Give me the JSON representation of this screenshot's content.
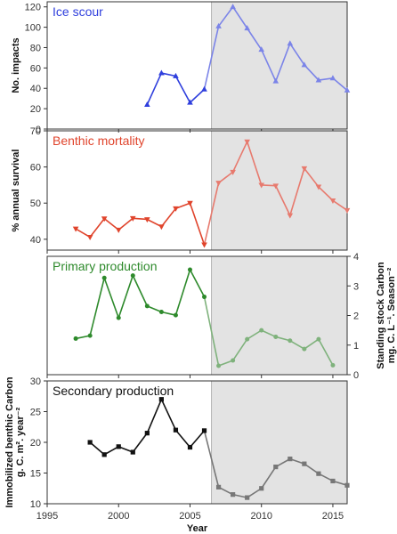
{
  "chart_data": [
    {
      "type": "line",
      "panel_label": "Ice scour",
      "ylabel": "No. impacts",
      "ylim": [
        0,
        125
      ],
      "yticks": [
        "0",
        "20",
        "40",
        "60",
        "80",
        "100",
        "120"
      ],
      "y_axis_side": "left",
      "shaded_from_x": 2006.5,
      "color": "#2f3fdd",
      "color_after": "#7b84e8",
      "marker": "triangle-up",
      "x": [
        2002,
        2003,
        2004,
        2005,
        2006,
        2007,
        2008,
        2009,
        2010,
        2011,
        2012,
        2013,
        2014,
        2015,
        2016
      ],
      "values": [
        24,
        55,
        52,
        26,
        39,
        101,
        120,
        99,
        78,
        47,
        84,
        63,
        48,
        50,
        38
      ]
    },
    {
      "type": "line",
      "panel_label": "Benthic mortality",
      "ylabel": "% annual survival",
      "ylim": [
        37,
        70
      ],
      "yticks": [
        "40",
        "50",
        "60",
        "70"
      ],
      "y_axis_side": "left",
      "shaded_from_x": 2006.5,
      "color": "#e0442c",
      "color_after": "#e77a6e",
      "marker": "triangle-down",
      "x": [
        1997,
        1998,
        1999,
        2000,
        2001,
        2002,
        2003,
        2004,
        2005,
        2006,
        2007,
        2008,
        2009,
        2010,
        2011,
        2012,
        2013,
        2014,
        2015,
        2016
      ],
      "values": [
        42.9,
        40.6,
        45.7,
        42.6,
        45.8,
        45.5,
        43.5,
        48.5,
        50,
        38.5,
        55.6,
        58.6,
        67,
        55,
        54.8,
        46.6,
        59.6,
        54.5,
        50.7,
        48
      ]
    },
    {
      "type": "line",
      "panel_label": "Primary production",
      "ylabel": "Standing stock Carbon",
      "ylabel_line2": "mg. C. L⁻¹. Season⁻²",
      "ylim": [
        0,
        4
      ],
      "yticks": [
        "0",
        "1",
        "2",
        "3",
        "4"
      ],
      "y_axis_side": "right",
      "shaded_from_x": 2006.5,
      "color": "#2e8a2c",
      "color_after": "#7fb27c",
      "marker": "circle",
      "x": [
        1997,
        1998,
        1999,
        2000,
        2001,
        2002,
        2003,
        2004,
        2005,
        2006,
        2007,
        2008,
        2009,
        2010,
        2011,
        2012,
        2013,
        2014,
        2015
      ],
      "values": [
        1.22,
        1.32,
        3.27,
        1.92,
        3.35,
        2.32,
        2.12,
        2.01,
        3.55,
        2.63,
        0.3,
        0.48,
        1.2,
        1.5,
        1.28,
        1.15,
        0.87,
        1.2,
        0.32
      ]
    },
    {
      "type": "line",
      "panel_label": "Secondary production",
      "ylabel": "Immobilized benthic Carbon",
      "ylabel_line2": "g. C. m². year⁻²",
      "ylim": [
        10,
        30
      ],
      "yticks": [
        "10",
        "15",
        "20",
        "25",
        "30"
      ],
      "y_axis_side": "left",
      "shaded_from_x": 2006.5,
      "color": "#111111",
      "color_after": "#777777",
      "marker": "square",
      "x": [
        1998,
        1999,
        2000,
        2001,
        2002,
        2003,
        2004,
        2005,
        2006,
        2007,
        2008,
        2009,
        2010,
        2011,
        2012,
        2013,
        2014,
        2015,
        2016
      ],
      "values": [
        20,
        18,
        19.3,
        18.4,
        21.5,
        27,
        22,
        19.2,
        21.9,
        12.7,
        11.5,
        11,
        12.5,
        16,
        17.3,
        16.5,
        14.9,
        13.7,
        13
      ],
      "xlabel": "Year",
      "xlim": [
        1995,
        2016
      ],
      "xtick_values": [
        1995,
        2000,
        2005,
        2010,
        2015
      ],
      "xticks": [
        "1995",
        "2000",
        "2005",
        "2010",
        "2015"
      ]
    }
  ]
}
